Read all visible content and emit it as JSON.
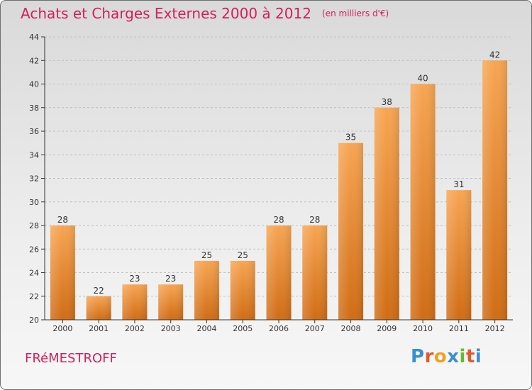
{
  "header": {
    "title": "Achats et Charges Externes 2000 à 2012",
    "unit": "(en milliers d'€)"
  },
  "footer": {
    "commune": "FRéMESTROFF",
    "brand": {
      "text": "Proxiti",
      "letters": [
        {
          "char": "P",
          "color": "#3a8fd0"
        },
        {
          "char": "r",
          "color": "#e05a2a"
        },
        {
          "char": "o",
          "color": "#f0a020"
        },
        {
          "char": "x",
          "color": "#3a8fd0"
        },
        {
          "char": "i",
          "color": "#6ab82e"
        },
        {
          "char": "t",
          "color": "#e05a2a"
        },
        {
          "char": "i",
          "color": "#3a8fd0"
        }
      ]
    }
  },
  "chart_data": {
    "type": "bar",
    "title": "Achats et Charges Externes 2000 à 2012",
    "subtitle": "(en milliers d'€)",
    "categories": [
      "2000",
      "2001",
      "2002",
      "2003",
      "2004",
      "2005",
      "2006",
      "2007",
      "2008",
      "2009",
      "2010",
      "2011",
      "2012"
    ],
    "values": [
      28,
      22,
      23,
      23,
      25,
      25,
      28,
      28,
      35,
      38,
      40,
      31,
      42
    ],
    "ylim": [
      20,
      44
    ],
    "yticks": [
      20,
      22,
      24,
      26,
      28,
      30,
      32,
      34,
      36,
      38,
      40,
      42,
      44
    ],
    "grid": true,
    "legend": "none",
    "colors": {
      "bar_top": "#f7a552",
      "bar_bottom": "#d06c14",
      "grid": "#bfbfbf",
      "axis": "#333333",
      "label": "#333333"
    }
  }
}
